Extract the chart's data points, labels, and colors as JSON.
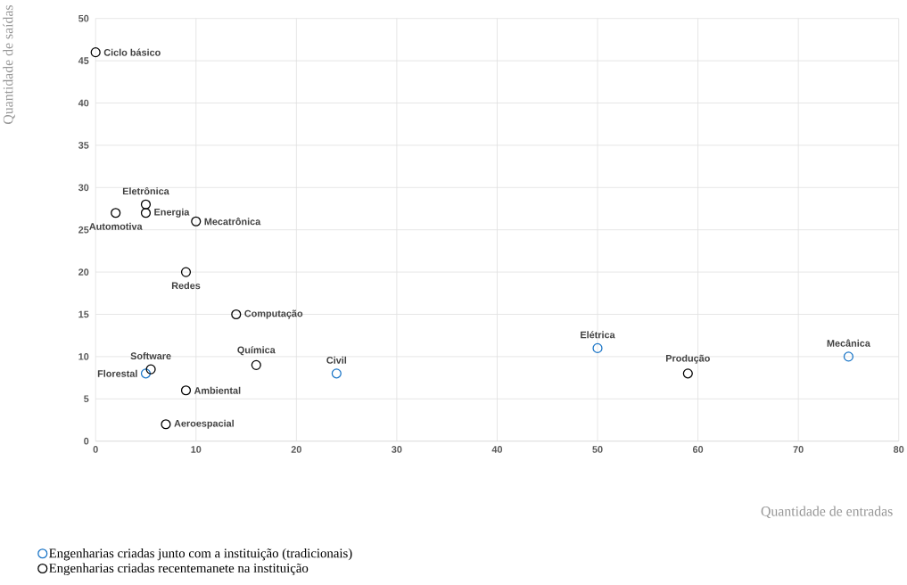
{
  "chart_data": {
    "type": "scatter",
    "xlabel": "Quantidade de entradas",
    "ylabel": "Quantidade de saídas",
    "xlim": [
      0,
      80
    ],
    "xticks": [
      0,
      10,
      20,
      30,
      40,
      50,
      60,
      70,
      80
    ],
    "ylim": [
      0,
      50
    ],
    "yticks": [
      0,
      5,
      10,
      15,
      20,
      25,
      30,
      35,
      40,
      45,
      50
    ],
    "grid": true,
    "legend": "bottom",
    "marker": "circle",
    "series": [
      {
        "name": "Engenharias criadas junto com a instituição (tradicionais)",
        "color": "#1a75c7",
        "x": [
          5,
          24,
          50,
          75
        ],
        "values": [
          8,
          8,
          11,
          10
        ]
      },
      {
        "name": "Engenharias criadas recentemanete na instituição",
        "color": "#000000",
        "x": [
          0,
          5,
          2,
          5,
          10,
          9,
          14,
          16,
          5.5,
          9,
          7,
          59
        ],
        "values": [
          46,
          28,
          27,
          27,
          26,
          20,
          15,
          9,
          8.5,
          6,
          2,
          8
        ]
      }
    ],
    "annotations": [
      {
        "text": "Ciclo básico",
        "x": 0,
        "y": 46
      },
      {
        "text": "Eletrônica",
        "x": 5,
        "y": 28
      },
      {
        "text": "Automotiva",
        "x": 2,
        "y": 27
      },
      {
        "text": "Energia",
        "x": 5,
        "y": 27
      },
      {
        "text": "Mecatrônica",
        "x": 10,
        "y": 26
      },
      {
        "text": "Redes",
        "x": 9,
        "y": 20
      },
      {
        "text": "Computação",
        "x": 14,
        "y": 15
      },
      {
        "text": "Química",
        "x": 16,
        "y": 9
      },
      {
        "text": "Software",
        "x": 5.5,
        "y": 8.5
      },
      {
        "text": "Florestal",
        "x": 5,
        "y": 8
      },
      {
        "text": "Ambiental",
        "x": 9,
        "y": 6
      },
      {
        "text": "Aeroespacial",
        "x": 7,
        "y": 2
      },
      {
        "text": "Civil",
        "x": 24,
        "y": 8
      },
      {
        "text": "Elétrica",
        "x": 50,
        "y": 11
      },
      {
        "text": "Produção",
        "x": 59,
        "y": 8
      },
      {
        "text": "Mecânica",
        "x": 75,
        "y": 10
      }
    ]
  }
}
